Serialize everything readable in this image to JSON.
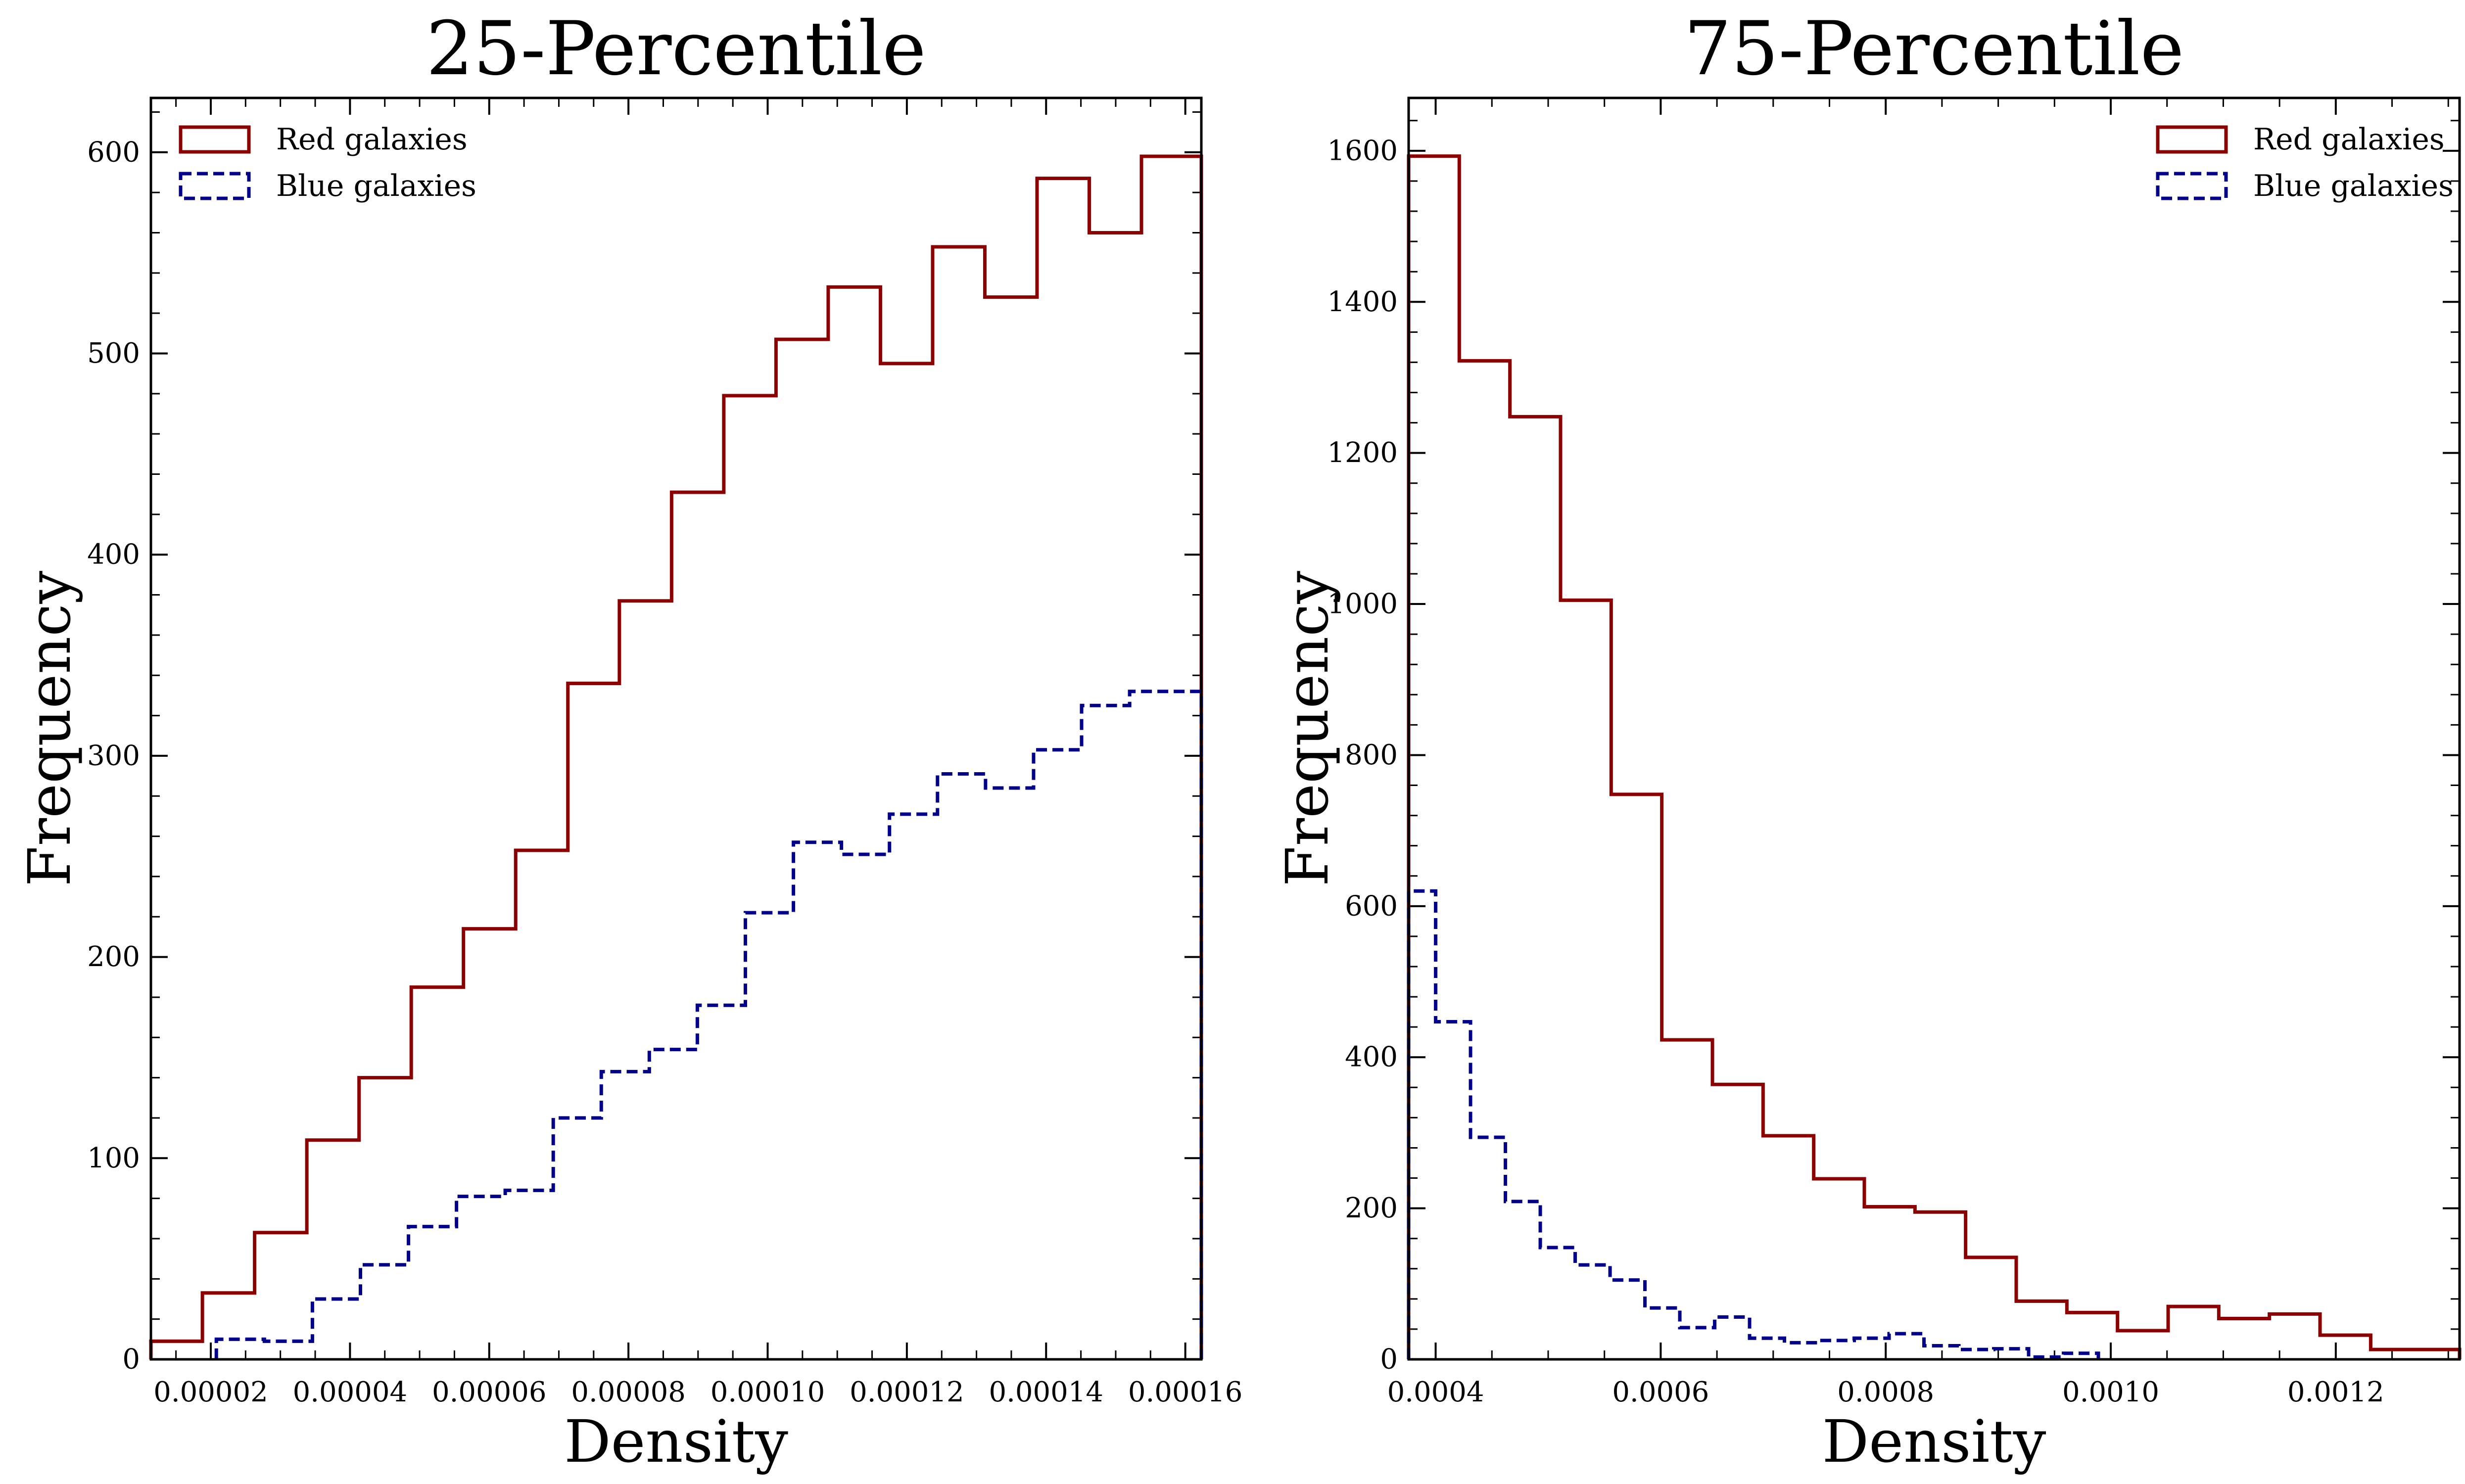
{
  "chart_data": [
    {
      "type": "histogram",
      "title": "25-Percentile",
      "xlabel": "Density",
      "ylabel": "Frequency",
      "xlim": [
        1.14e-05,
        0.0001623
      ],
      "ylim": [
        0,
        627
      ],
      "xticks": [
        2e-05,
        4e-05,
        6e-05,
        8e-05,
        0.0001,
        0.00012,
        0.00014,
        0.00016
      ],
      "xtick_labels": [
        "0.00002",
        "0.00004",
        "0.00006",
        "0.00008",
        "0.00010",
        "0.00012",
        "0.00014",
        "0.00016"
      ],
      "yticks": [
        0,
        100,
        200,
        300,
        400,
        500,
        600
      ],
      "ytick_labels": [
        "0",
        "100",
        "200",
        "300",
        "400",
        "500",
        "600"
      ],
      "legend_position": "top-left",
      "series": [
        {
          "name": "Red galaxies",
          "color": "#8b0000",
          "linestyle": "solid",
          "bin_edges": [
            1.14e-05,
            1.88e-05,
            2.63e-05,
            3.38e-05,
            4.13e-05,
            4.88e-05,
            5.63e-05,
            6.38e-05,
            7.13e-05,
            7.87e-05,
            8.62e-05,
            9.37e-05,
            0.0001012,
            0.0001087,
            0.0001162,
            0.0001237,
            0.0001312,
            0.0001387,
            0.0001462,
            0.0001537,
            0.0001623
          ],
          "counts": [
            9,
            33,
            63,
            109,
            140,
            185,
            214,
            253,
            336,
            377,
            431,
            479,
            507,
            533,
            495,
            553,
            528,
            587,
            560,
            598
          ]
        },
        {
          "name": "Blue galaxies",
          "color": "#00008b",
          "linestyle": "dashed",
          "bin_edges": [
            2.08e-05,
            2.77e-05,
            3.46e-05,
            4.15e-05,
            4.84e-05,
            5.53e-05,
            6.23e-05,
            6.92e-05,
            7.61e-05,
            8.3e-05,
            8.99e-05,
            9.68e-05,
            0.0001037,
            0.0001106,
            0.0001175,
            0.0001244,
            0.0001313,
            0.0001382,
            0.0001451,
            0.000152,
            0.0001623
          ],
          "counts": [
            10,
            9,
            30,
            47,
            66,
            81,
            84,
            120,
            143,
            154,
            176,
            222,
            257,
            251,
            271,
            291,
            284,
            303,
            325,
            332
          ]
        }
      ]
    },
    {
      "type": "histogram",
      "title": "75-Percentile",
      "xlabel": "Density",
      "ylabel": "Frequency",
      "xlim": [
        0.000376,
        0.00131
      ],
      "ylim": [
        0,
        1670
      ],
      "xticks": [
        0.0004,
        0.0006,
        0.0008,
        0.001,
        0.0012
      ],
      "xtick_labels": [
        "0.0004",
        "0.0006",
        "0.0008",
        "0.0010",
        "0.0012"
      ],
      "yticks": [
        0,
        200,
        400,
        600,
        800,
        1000,
        1200,
        1400,
        1600
      ],
      "ytick_labels": [
        "0",
        "200",
        "400",
        "600",
        "800",
        "1000",
        "1200",
        "1400",
        "1600"
      ],
      "legend_position": "top-right",
      "series": [
        {
          "name": "Red galaxies",
          "color": "#8b0000",
          "linestyle": "solid",
          "bin_edges": [
            0.000376,
            0.000421,
            0.000466,
            0.000511,
            0.000556,
            0.000601,
            0.000646,
            0.000691,
            0.000736,
            0.000781,
            0.000826,
            0.000871,
            0.000916,
            0.000961,
            0.001006,
            0.001051,
            0.001096,
            0.001141,
            0.001186,
            0.001231,
            0.00131
          ],
          "counts": [
            1593,
            1322,
            1248,
            1005,
            748,
            423,
            364,
            296,
            239,
            202,
            195,
            135,
            77,
            62,
            38,
            70,
            54,
            60,
            32,
            13
          ]
        },
        {
          "name": "Blue galaxies",
          "color": "#00008b",
          "linestyle": "dashed",
          "bin_edges": [
            0.000376,
            0.0004,
            0.000431,
            0.000462,
            0.000493,
            0.000524,
            0.000555,
            0.000586,
            0.000617,
            0.000648,
            0.000679,
            0.00071,
            0.000741,
            0.000772,
            0.000803,
            0.000834,
            0.000865,
            0.000896,
            0.000927,
            0.000958,
            0.000989
          ],
          "counts": [
            620,
            447,
            294,
            209,
            148,
            125,
            105,
            68,
            42,
            56,
            28,
            22,
            25,
            28,
            34,
            18,
            13,
            14,
            3,
            8
          ]
        }
      ]
    }
  ]
}
